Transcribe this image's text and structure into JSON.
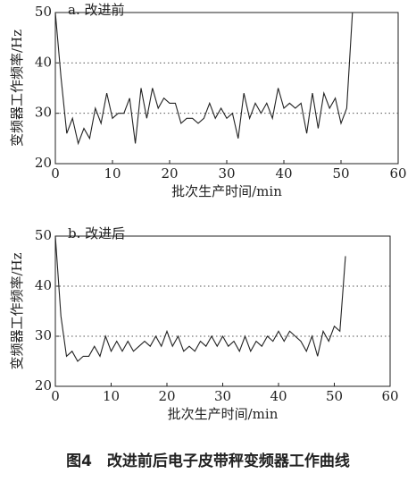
{
  "chart_data": [
    {
      "type": "line",
      "title": "a. 改进前",
      "xlabel": "批次生产时间/min",
      "ylabel": "变频器工作频率/Hz",
      "x": [
        0,
        1,
        2,
        3,
        4,
        5,
        6,
        7,
        8,
        9,
        10,
        11,
        12,
        13,
        14,
        15,
        16,
        17,
        18,
        19,
        20,
        21,
        22,
        23,
        24,
        25,
        26,
        27,
        28,
        29,
        30,
        31,
        32,
        33,
        34,
        35,
        36,
        37,
        38,
        39,
        40,
        41,
        42,
        43,
        44,
        45,
        46,
        47,
        48,
        49,
        50,
        51,
        52
      ],
      "values": [
        50,
        37,
        26,
        29,
        24,
        27,
        25,
        31,
        28,
        34,
        29,
        30,
        30,
        33,
        24,
        35,
        29,
        35,
        31,
        33,
        32,
        32,
        28,
        29,
        29,
        28,
        29,
        32,
        29,
        31,
        29,
        30,
        25,
        34,
        29,
        32,
        30,
        32,
        29,
        35,
        31,
        32,
        31,
        32,
        26,
        34,
        27,
        34,
        31,
        33,
        28,
        31,
        50
      ],
      "color": "#222222",
      "xlim": [
        0,
        60
      ],
      "ylim": [
        20,
        50
      ],
      "xticks": [
        0,
        10,
        20,
        30,
        40,
        50,
        60
      ],
      "yticks": [
        20,
        30,
        40,
        50
      ],
      "grid": true
    },
    {
      "type": "line",
      "title": "b. 改进后",
      "xlabel": "批次生产时间/min",
      "ylabel": "变频器工作频率/Hz",
      "x": [
        0,
        1,
        2,
        3,
        4,
        5,
        6,
        7,
        8,
        9,
        10,
        11,
        12,
        13,
        14,
        15,
        16,
        17,
        18,
        19,
        20,
        21,
        22,
        23,
        24,
        25,
        26,
        27,
        28,
        29,
        30,
        31,
        32,
        33,
        34,
        35,
        36,
        37,
        38,
        39,
        40,
        41,
        42,
        43,
        44,
        45,
        46,
        47,
        48,
        49,
        50,
        51,
        52
      ],
      "values": [
        50,
        34,
        26,
        27,
        25,
        26,
        26,
        28,
        26,
        30,
        27,
        29,
        27,
        29,
        27,
        28,
        29,
        28,
        30,
        28,
        31,
        28,
        30,
        27,
        28,
        27,
        29,
        28,
        30,
        28,
        30,
        28,
        29,
        27,
        30,
        27,
        29,
        28,
        30,
        29,
        31,
        29,
        31,
        30,
        29,
        27,
        30,
        26,
        31,
        29,
        32,
        31,
        46
      ],
      "color": "#222222",
      "xlim": [
        0,
        60
      ],
      "ylim": [
        20,
        50
      ],
      "xticks": [
        0,
        10,
        20,
        30,
        40,
        50,
        60
      ],
      "yticks": [
        20,
        30,
        40,
        50
      ],
      "grid": true
    }
  ],
  "caption": "图4　改进前后电子皮带秤变频器工作曲线"
}
